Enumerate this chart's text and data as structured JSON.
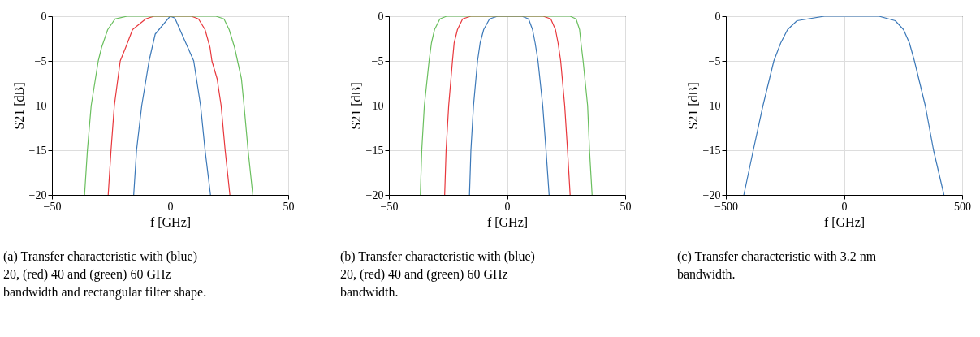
{
  "chart_data": [
    {
      "type": "line",
      "xlabel": "f [GHz]",
      "ylabel": "S21 [dB]",
      "xlim": [
        -50,
        50
      ],
      "xticks": [
        -50,
        0,
        50
      ],
      "ylim": [
        -20,
        0
      ],
      "yticks": [
        -20,
        -15,
        -10,
        -5,
        0
      ],
      "grid": true,
      "annotations": [
        "(a) Transfer characteristic with (blue) 20, (red) 40 and (green) 60 GHz bandwidth and rectangular filter shape."
      ],
      "series": [
        {
          "color": "#3b78b8",
          "x": [
            -15.4,
            -14.2,
            -12,
            -8.9,
            -6.3,
            0,
            2,
            10,
            12.9,
            14.8,
            17.1
          ],
          "values": [
            -20,
            -15,
            -10,
            -5,
            -2,
            0,
            -0.2,
            -5,
            -10,
            -15,
            -20
          ]
        },
        {
          "color": "#e8373c",
          "x": [
            -26.2,
            -25,
            -23.6,
            -21.1,
            -18.8,
            -15.9,
            -10.3,
            -6.8,
            9,
            12,
            14.8,
            16.9,
            17.7,
            19.9,
            21.6,
            23.3,
            25.3
          ],
          "values": [
            -20,
            -15,
            -10,
            -5,
            -3.5,
            -1.5,
            -0.3,
            0,
            0,
            -0.3,
            -1.5,
            -3.5,
            -5,
            -7,
            -10,
            -15,
            -20
          ]
        },
        {
          "color": "#6abf5e",
          "x": [
            -36.2,
            -35,
            -33.4,
            -30.4,
            -29,
            -26.4,
            -23.3,
            -18.2,
            19.4,
            22.8,
            25,
            27.3,
            30.2,
            31.3,
            33,
            35
          ],
          "values": [
            -20,
            -15,
            -10,
            -5,
            -3.5,
            -1.5,
            -0.3,
            0,
            0,
            -0.3,
            -1.5,
            -3.5,
            -7,
            -10,
            -15,
            -20
          ]
        }
      ]
    },
    {
      "type": "line",
      "xlabel": "f [GHz]",
      "ylabel": "S21 [dB]",
      "xlim": [
        -50,
        50
      ],
      "xticks": [
        -50,
        0,
        50
      ],
      "ylim": [
        -20,
        0
      ],
      "yticks": [
        -20,
        -15,
        -10,
        -5,
        0
      ],
      "grid": true,
      "annotations": [
        "(b) Transfer characteristic with (blue) 20, (red) 40 and (green) 60 GHz bandwidth."
      ],
      "series": [
        {
          "color": "#3b78b8",
          "x": [
            -15.9,
            -15.3,
            -14.2,
            -12.5,
            -11.4,
            -9.9,
            -7.4,
            -4,
            6.3,
            9.1,
            10.8,
            11.9,
            13.1,
            15.1,
            16.5,
            17.8
          ],
          "values": [
            -20,
            -15,
            -10,
            -5,
            -3,
            -1.5,
            -0.3,
            0,
            0,
            -0.3,
            -1.5,
            -3,
            -5,
            -10,
            -15,
            -20
          ]
        },
        {
          "color": "#e8373c",
          "x": [
            -26.4,
            -25.8,
            -24.7,
            -23.1,
            -22.4,
            -21,
            -18.8,
            -15.3,
            15.3,
            18.5,
            20.5,
            21.6,
            22.7,
            24.4,
            25.6,
            26.7
          ],
          "values": [
            -20,
            -15,
            -10,
            -5,
            -3,
            -1.5,
            -0.3,
            0,
            0,
            -0.3,
            -1.5,
            -3,
            -5,
            -10,
            -15,
            -20
          ]
        },
        {
          "color": "#6abf5e",
          "x": [
            -36.7,
            -36.1,
            -35,
            -33,
            -32,
            -30.7,
            -28.4,
            -25.6,
            26.7,
            29.2,
            30.7,
            31.3,
            32.2,
            34.1,
            34.9,
            36
          ],
          "values": [
            -20,
            -15,
            -10,
            -5,
            -3,
            -1.5,
            -0.3,
            0,
            0,
            -0.3,
            -1.5,
            -3,
            -5,
            -10,
            -15,
            -20
          ]
        }
      ]
    },
    {
      "type": "line",
      "xlabel": "f [GHz]",
      "ylabel": "S21 [dB]",
      "xlim": [
        -500,
        500
      ],
      "xticks": [
        -500,
        0,
        500
      ],
      "ylim": [
        -20,
        0
      ],
      "yticks": [
        -20,
        -15,
        -10,
        -5,
        0
      ],
      "grid": true,
      "annotations": [
        "(c) Transfer characteristic with 3.2 nm bandwidth."
      ],
      "series": [
        {
          "color": "#3b78b8",
          "x": [
            -424,
            -384,
            -343,
            -297,
            -268,
            -239,
            -199,
            -83,
            148,
            217,
            252,
            277,
            298,
            344,
            379,
            423
          ],
          "values": [
            -20,
            -15,
            -10,
            -5,
            -3,
            -1.5,
            -0.5,
            0,
            0,
            -0.5,
            -1.5,
            -3,
            -5,
            -10,
            -15,
            -20
          ]
        }
      ]
    }
  ]
}
